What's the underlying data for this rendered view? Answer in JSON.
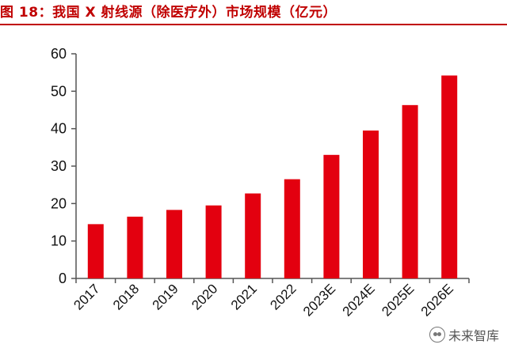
{
  "header": {
    "title": "图 18：我国 X 射线源（除医疗外）市场规模（亿元）"
  },
  "watermark": {
    "text": "未来智库",
    "icon": "wechat-icon"
  },
  "colors": {
    "bar": "#e3000f",
    "title": "#c00000",
    "axis": "#555555"
  },
  "chart_data": {
    "type": "bar",
    "categories": [
      "2017",
      "2018",
      "2019",
      "2020",
      "2021",
      "2022",
      "2023E",
      "2024E",
      "2025E",
      "2026E"
    ],
    "values": [
      14.5,
      16.5,
      18.3,
      19.5,
      22.7,
      26.5,
      33.0,
      39.5,
      46.3,
      54.2
    ],
    "yticks": [
      "0",
      "10",
      "20",
      "30",
      "40",
      "50",
      "60"
    ],
    "ylim": [
      0,
      60
    ],
    "grid": false,
    "legend": "none"
  }
}
